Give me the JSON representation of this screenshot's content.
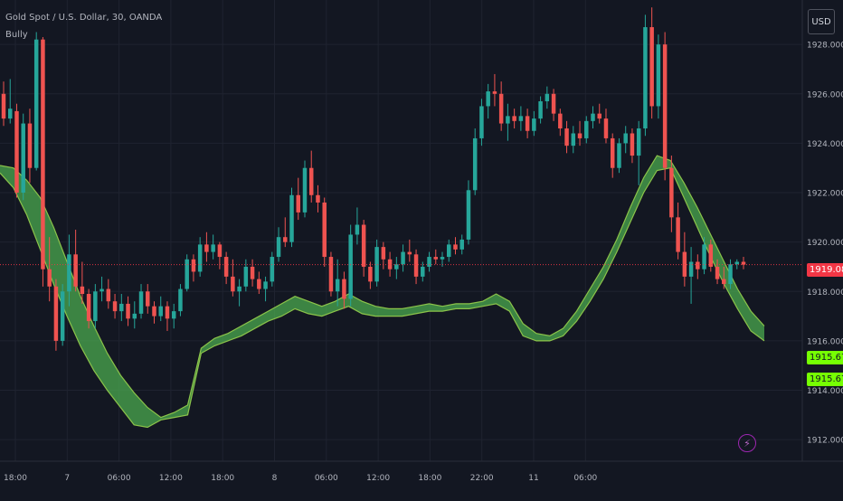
{
  "header": {
    "title": "Gold Spot / U.S. Dollar, 30, OANDA",
    "indicator": "Bully",
    "currency": "USD"
  },
  "colors": {
    "background": "#131722",
    "grid": "#1f2330",
    "up": "#26a69a",
    "down": "#ef5350",
    "band_fill": "#4caf50",
    "band_line": "#8bc34a",
    "price_line": "#f23645",
    "axis_text": "#b2b5be"
  },
  "price_badges": {
    "last_price": "1919.085",
    "band_upper": "1915.673",
    "band_lower": "1915.673"
  },
  "chart_data": {
    "type": "candlestick",
    "symbol": "Gold Spot / U.S. Dollar",
    "interval": "30",
    "ylim": [
      1911.2,
      1929.8
    ],
    "y_ticks": [
      "1912.000",
      "1914.000",
      "1916.000",
      "1918.000",
      "1920.000",
      "1922.000",
      "1924.000",
      "1926.000",
      "1928.000"
    ],
    "x_ticks": [
      "18:00",
      "7",
      "06:00",
      "12:00",
      "18:00",
      "8",
      "06:00",
      "12:00",
      "18:00",
      "22:00",
      "11",
      "06:00"
    ],
    "last_price": 1919.085,
    "candles": [
      [
        1926.0,
        1926.5,
        1924.7,
        1925.0
      ],
      [
        1925.0,
        1926.6,
        1924.8,
        1925.4
      ],
      [
        1925.3,
        1925.6,
        1921.8,
        1922.0
      ],
      [
        1922.0,
        1925.2,
        1921.7,
        1924.8
      ],
      [
        1924.8,
        1925.4,
        1922.4,
        1923.0
      ],
      [
        1923.0,
        1928.5,
        1922.9,
        1928.2
      ],
      [
        1928.2,
        1928.3,
        1918.2,
        1918.9
      ],
      [
        1918.9,
        1920.2,
        1917.6,
        1918.2
      ],
      [
        1918.2,
        1918.5,
        1915.6,
        1916.0
      ],
      [
        1916.0,
        1918.3,
        1915.8,
        1918.0
      ],
      [
        1918.0,
        1920.3,
        1917.4,
        1919.5
      ],
      [
        1919.5,
        1920.5,
        1918.0,
        1918.2
      ],
      [
        1918.2,
        1919.2,
        1917.5,
        1917.9
      ],
      [
        1917.9,
        1918.1,
        1916.5,
        1916.8
      ],
      [
        1916.8,
        1918.3,
        1916.5,
        1918.0
      ],
      [
        1918.0,
        1918.6,
        1917.6,
        1918.1
      ],
      [
        1918.1,
        1918.5,
        1917.3,
        1917.6
      ],
      [
        1917.6,
        1917.9,
        1916.9,
        1917.2
      ],
      [
        1917.2,
        1917.9,
        1916.8,
        1917.5
      ],
      [
        1917.5,
        1917.8,
        1916.6,
        1916.9
      ],
      [
        1916.9,
        1917.6,
        1916.5,
        1917.1
      ],
      [
        1917.1,
        1918.3,
        1916.9,
        1918.0
      ],
      [
        1918.0,
        1918.3,
        1917.1,
        1917.4
      ],
      [
        1917.4,
        1917.6,
        1916.7,
        1917.0
      ],
      [
        1917.0,
        1917.8,
        1916.8,
        1917.4
      ],
      [
        1917.4,
        1917.6,
        1916.4,
        1916.9
      ],
      [
        1916.9,
        1917.5,
        1916.5,
        1917.2
      ],
      [
        1917.2,
        1918.3,
        1917.0,
        1918.1
      ],
      [
        1918.1,
        1919.5,
        1918.0,
        1919.3
      ],
      [
        1919.3,
        1919.5,
        1918.4,
        1918.8
      ],
      [
        1918.8,
        1920.2,
        1918.6,
        1919.9
      ],
      [
        1919.9,
        1920.4,
        1919.2,
        1919.6
      ],
      [
        1919.6,
        1920.3,
        1919.3,
        1919.9
      ],
      [
        1919.9,
        1920.0,
        1918.9,
        1919.4
      ],
      [
        1919.4,
        1919.6,
        1918.3,
        1918.6
      ],
      [
        1918.6,
        1919.3,
        1917.8,
        1918.0
      ],
      [
        1918.0,
        1918.5,
        1917.4,
        1918.2
      ],
      [
        1918.2,
        1919.3,
        1918.0,
        1919.0
      ],
      [
        1919.0,
        1919.3,
        1918.2,
        1918.5
      ],
      [
        1918.5,
        1918.8,
        1917.9,
        1918.1
      ],
      [
        1918.1,
        1918.6,
        1917.6,
        1918.4
      ],
      [
        1918.4,
        1919.6,
        1918.2,
        1919.4
      ],
      [
        1919.4,
        1920.6,
        1919.2,
        1920.2
      ],
      [
        1920.2,
        1921.0,
        1919.8,
        1920.0
      ],
      [
        1920.0,
        1922.2,
        1919.8,
        1921.9
      ],
      [
        1921.9,
        1922.6,
        1920.9,
        1921.2
      ],
      [
        1921.2,
        1923.3,
        1921.0,
        1923.0
      ],
      [
        1923.0,
        1923.7,
        1921.6,
        1921.9
      ],
      [
        1921.9,
        1922.3,
        1921.2,
        1921.6
      ],
      [
        1921.6,
        1921.8,
        1919.0,
        1919.4
      ],
      [
        1919.4,
        1919.6,
        1917.8,
        1918.0
      ],
      [
        1918.0,
        1919.3,
        1917.4,
        1918.5
      ],
      [
        1918.5,
        1918.8,
        1917.3,
        1917.7
      ],
      [
        1917.7,
        1920.7,
        1917.4,
        1920.3
      ],
      [
        1920.3,
        1921.4,
        1919.9,
        1920.7
      ],
      [
        1920.7,
        1920.9,
        1918.6,
        1919.0
      ],
      [
        1919.0,
        1919.2,
        1918.1,
        1918.4
      ],
      [
        1918.4,
        1920.1,
        1918.2,
        1919.8
      ],
      [
        1919.8,
        1920.0,
        1918.9,
        1919.3
      ],
      [
        1919.3,
        1919.6,
        1918.6,
        1918.9
      ],
      [
        1918.9,
        1919.4,
        1918.5,
        1919.1
      ],
      [
        1919.1,
        1919.9,
        1918.8,
        1919.6
      ],
      [
        1919.6,
        1920.1,
        1919.2,
        1919.5
      ],
      [
        1919.5,
        1919.7,
        1918.3,
        1918.6
      ],
      [
        1918.6,
        1919.2,
        1918.4,
        1919.0
      ],
      [
        1919.0,
        1919.6,
        1918.8,
        1919.4
      ],
      [
        1919.4,
        1919.7,
        1919.1,
        1919.3
      ],
      [
        1919.3,
        1919.6,
        1919.0,
        1919.4
      ],
      [
        1919.4,
        1920.1,
        1919.2,
        1919.9
      ],
      [
        1919.9,
        1920.2,
        1919.5,
        1919.7
      ],
      [
        1919.7,
        1920.3,
        1919.5,
        1920.1
      ],
      [
        1920.1,
        1922.5,
        1919.9,
        1922.1
      ],
      [
        1922.1,
        1924.6,
        1921.9,
        1924.2
      ],
      [
        1924.2,
        1925.8,
        1923.9,
        1925.5
      ],
      [
        1925.5,
        1926.4,
        1925.0,
        1926.1
      ],
      [
        1926.1,
        1926.8,
        1925.5,
        1926.0
      ],
      [
        1926.0,
        1926.5,
        1924.5,
        1924.8
      ],
      [
        1924.8,
        1925.6,
        1924.1,
        1925.1
      ],
      [
        1925.1,
        1925.4,
        1924.6,
        1924.9
      ],
      [
        1924.9,
        1925.5,
        1924.5,
        1925.1
      ],
      [
        1925.1,
        1925.4,
        1924.2,
        1924.5
      ],
      [
        1924.5,
        1925.3,
        1924.3,
        1925.0
      ],
      [
        1925.0,
        1925.9,
        1924.8,
        1925.7
      ],
      [
        1925.7,
        1926.3,
        1925.4,
        1926.0
      ],
      [
        1926.0,
        1926.2,
        1924.9,
        1925.2
      ],
      [
        1925.2,
        1925.4,
        1924.3,
        1924.6
      ],
      [
        1924.6,
        1924.9,
        1923.6,
        1923.9
      ],
      [
        1923.9,
        1924.7,
        1923.6,
        1924.4
      ],
      [
        1924.4,
        1924.9,
        1923.9,
        1924.2
      ],
      [
        1924.2,
        1925.1,
        1924.0,
        1924.9
      ],
      [
        1924.9,
        1925.5,
        1924.6,
        1925.2
      ],
      [
        1925.2,
        1925.6,
        1924.8,
        1925.0
      ],
      [
        1925.0,
        1925.4,
        1924.0,
        1924.2
      ],
      [
        1924.2,
        1924.4,
        1922.6,
        1923.0
      ],
      [
        1923.0,
        1924.2,
        1922.8,
        1924.0
      ],
      [
        1924.0,
        1924.7,
        1923.6,
        1924.4
      ],
      [
        1924.4,
        1924.6,
        1923.2,
        1923.5
      ],
      [
        1923.5,
        1924.9,
        1922.3,
        1924.6
      ],
      [
        1924.6,
        1929.2,
        1924.3,
        1928.7
      ],
      [
        1928.7,
        1929.5,
        1925.0,
        1925.5
      ],
      [
        1925.5,
        1928.4,
        1925.0,
        1928.0
      ],
      [
        1928.0,
        1928.5,
        1922.5,
        1923.0
      ],
      [
        1923.0,
        1923.5,
        1920.4,
        1921.0
      ],
      [
        1921.0,
        1921.6,
        1919.3,
        1919.6
      ],
      [
        1919.6,
        1920.4,
        1918.2,
        1918.6
      ],
      [
        1918.6,
        1919.8,
        1917.5,
        1919.2
      ],
      [
        1919.2,
        1919.5,
        1918.5,
        1918.9
      ],
      [
        1918.9,
        1920.2,
        1918.7,
        1919.9
      ],
      [
        1919.9,
        1920.1,
        1918.8,
        1919.0
      ],
      [
        1919.0,
        1919.3,
        1918.3,
        1918.5
      ],
      [
        1918.5,
        1919.0,
        1918.1,
        1918.3
      ],
      [
        1918.3,
        1919.3,
        1918.1,
        1919.1
      ],
      [
        1919.1,
        1919.3,
        1918.9,
        1919.2
      ],
      [
        1919.2,
        1919.4,
        1918.9,
        1919.085
      ]
    ],
    "band_upper": [
      1923.1,
      1923.0,
      1922.5,
      1921.8,
      1920.6,
      1919.2,
      1917.8,
      1916.6,
      1915.5,
      1914.6,
      1913.9,
      1913.3,
      1912.9,
      1913.1,
      1913.4,
      1915.7,
      1916.1,
      1916.3,
      1916.6,
      1916.9,
      1917.2,
      1917.5,
      1917.8,
      1917.6,
      1917.4,
      1917.6,
      1917.9,
      1917.6,
      1917.4,
      1917.3,
      1917.3,
      1917.4,
      1917.5,
      1917.4,
      1917.5,
      1917.5,
      1917.6,
      1917.9,
      1917.6,
      1916.7,
      1916.3,
      1916.2,
      1916.5,
      1917.2,
      1918.1,
      1919.0,
      1920.1,
      1921.4,
      1922.6,
      1923.5,
      1923.3,
      1922.4,
      1921.4,
      1920.3,
      1919.2,
      1918.1,
      1917.2,
      1916.6
    ],
    "band_lower": [
      1922.8,
      1922.2,
      1921.1,
      1919.7,
      1918.3,
      1917.0,
      1915.8,
      1914.8,
      1914.0,
      1913.3,
      1912.6,
      1912.5,
      1912.8,
      1912.9,
      1913.0,
      1915.5,
      1915.8,
      1916.0,
      1916.2,
      1916.5,
      1916.8,
      1917.0,
      1917.3,
      1917.1,
      1917.0,
      1917.2,
      1917.4,
      1917.1,
      1917.0,
      1917.0,
      1917.0,
      1917.1,
      1917.2,
      1917.2,
      1917.3,
      1917.3,
      1917.4,
      1917.5,
      1917.2,
      1916.2,
      1916.0,
      1916.0,
      1916.2,
      1916.8,
      1917.6,
      1918.5,
      1919.6,
      1920.8,
      1922.0,
      1922.9,
      1923.0,
      1921.8,
      1920.6,
      1919.4,
      1918.3,
      1917.3,
      1916.4,
      1916.0
    ]
  }
}
